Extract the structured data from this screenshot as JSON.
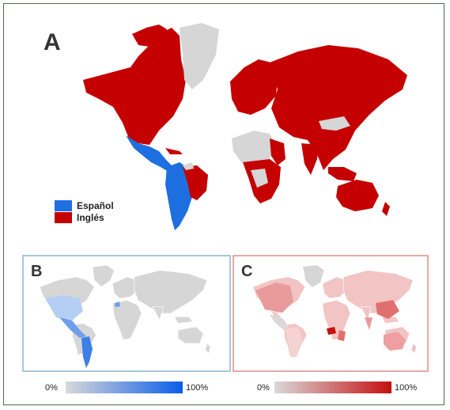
{
  "panels": {
    "a": {
      "letter": "A"
    },
    "b": {
      "letter": "B"
    },
    "c": {
      "letter": "C"
    }
  },
  "legend": {
    "items": [
      {
        "label": "Español",
        "color": "#1e6fe0"
      },
      {
        "label": "Inglés",
        "color": "#c40000"
      }
    ]
  },
  "scales": {
    "b": {
      "min_label": "0%",
      "max_label": "100%",
      "from": "#d9d9d9",
      "to": "#0a5de8"
    },
    "c": {
      "min_label": "0%",
      "max_label": "100%",
      "from": "#d9d9d9",
      "to": "#c41010"
    }
  },
  "colors": {
    "english": "#c40000",
    "spanish": "#1e6fe0",
    "no_data": "#d6d6d6",
    "panel_b_border": "#8ab4cf",
    "panel_c_border": "#e08a8a"
  }
}
